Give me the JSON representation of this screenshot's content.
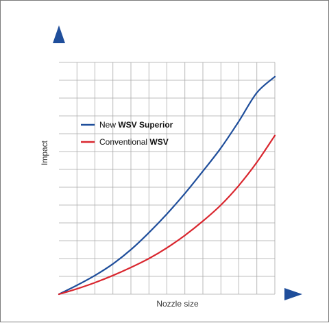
{
  "chart_data": {
    "type": "line",
    "xlabel": "Nozzle size",
    "ylabel": "Impact",
    "xlim": [
      0,
      12
    ],
    "ylim": [
      0,
      13
    ],
    "grid": true,
    "legend_position": "top-left",
    "series": [
      {
        "name": "New WSV Superior",
        "legend_prefix": "New ",
        "legend_bold": "WSV Superior",
        "color": "#1f4e9b",
        "x": [
          0,
          1,
          2,
          3,
          4,
          5,
          6,
          7,
          8,
          9,
          10,
          11,
          12
        ],
        "y": [
          0,
          0.5,
          1.05,
          1.7,
          2.5,
          3.45,
          4.5,
          5.65,
          6.9,
          8.2,
          9.7,
          11.3,
          12.2
        ]
      },
      {
        "name": "Conventional WSV",
        "legend_prefix": "Conventional ",
        "legend_bold": "WSV",
        "color": "#d9262e",
        "x": [
          0,
          1,
          2,
          3,
          4,
          5,
          6,
          7,
          8,
          9,
          10,
          11,
          12
        ],
        "y": [
          0,
          0.3,
          0.65,
          1.05,
          1.5,
          2.0,
          2.6,
          3.3,
          4.1,
          5.0,
          6.1,
          7.4,
          8.9
        ]
      }
    ]
  }
}
